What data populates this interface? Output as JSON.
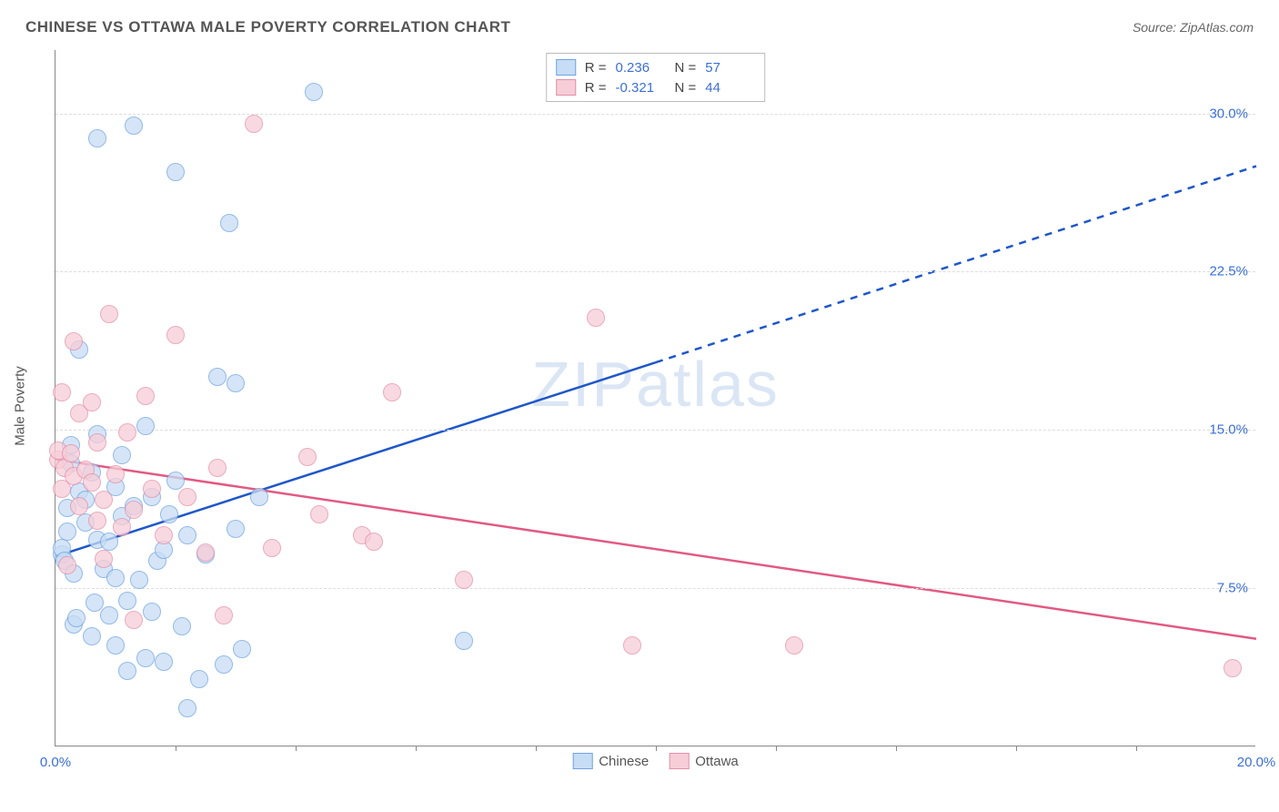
{
  "header": {
    "title": "CHINESE VS OTTAWA MALE POVERTY CORRELATION CHART",
    "source_prefix": "Source: ",
    "source_name": "ZipAtlas.com"
  },
  "watermark": {
    "a": "ZIP",
    "b": "atlas"
  },
  "axes": {
    "ylabel": "Male Poverty",
    "xlim": [
      0,
      20
    ],
    "ylim": [
      0,
      33
    ],
    "x_ticks_labeled": [
      {
        "v": 0,
        "label": "0.0%"
      },
      {
        "v": 20,
        "label": "20.0%"
      }
    ],
    "x_tick_marks": [
      2,
      4,
      6,
      8,
      10,
      12,
      14,
      16,
      18
    ],
    "y_ticks": [
      {
        "v": 7.5,
        "label": "7.5%"
      },
      {
        "v": 15.0,
        "label": "15.0%"
      },
      {
        "v": 22.5,
        "label": "22.5%"
      },
      {
        "v": 30.0,
        "label": "30.0%"
      }
    ],
    "grid_color": "#dddddd"
  },
  "legend_top": [
    {
      "r": "0.236",
      "n": "57",
      "fill": "#c7ddf5",
      "stroke": "#6fa3e0"
    },
    {
      "r": "-0.321",
      "n": "44",
      "fill": "#f7cdd8",
      "stroke": "#e290a8"
    }
  ],
  "legend_bottom": [
    {
      "label": "Chinese",
      "fill": "#c7ddf5",
      "stroke": "#6fa3e0"
    },
    {
      "label": "Ottawa",
      "fill": "#f7cdd8",
      "stroke": "#e290a8"
    }
  ],
  "series": {
    "chinese": {
      "fill": "#c7ddf5",
      "stroke": "#6fa3e0",
      "opacity": 0.75,
      "r": 10,
      "trend": {
        "x1": 0,
        "y1": 9.0,
        "x2": 10,
        "y2": 18.2,
        "x2_ext": 20,
        "y2_ext": 27.5,
        "color": "#1f57c8"
      },
      "points": [
        [
          0.1,
          9.1
        ],
        [
          0.1,
          9.4
        ],
        [
          0.15,
          8.8
        ],
        [
          0.2,
          10.2
        ],
        [
          0.2,
          11.3
        ],
        [
          0.25,
          14.3
        ],
        [
          0.25,
          13.4
        ],
        [
          0.3,
          8.2
        ],
        [
          0.3,
          5.8
        ],
        [
          0.35,
          6.1
        ],
        [
          0.4,
          12.1
        ],
        [
          0.4,
          18.8
        ],
        [
          0.5,
          10.6
        ],
        [
          0.5,
          11.7
        ],
        [
          0.6,
          13.0
        ],
        [
          0.6,
          5.2
        ],
        [
          0.65,
          6.8
        ],
        [
          0.7,
          14.8
        ],
        [
          0.7,
          9.8
        ],
        [
          0.7,
          28.8
        ],
        [
          0.8,
          8.4
        ],
        [
          0.9,
          6.2
        ],
        [
          0.9,
          9.7
        ],
        [
          1.0,
          12.3
        ],
        [
          1.0,
          4.8
        ],
        [
          1.0,
          8.0
        ],
        [
          1.1,
          13.8
        ],
        [
          1.1,
          10.9
        ],
        [
          1.2,
          6.9
        ],
        [
          1.2,
          3.6
        ],
        [
          1.3,
          29.4
        ],
        [
          1.3,
          11.4
        ],
        [
          1.4,
          7.9
        ],
        [
          1.5,
          15.2
        ],
        [
          1.5,
          4.2
        ],
        [
          1.6,
          11.8
        ],
        [
          1.6,
          6.4
        ],
        [
          1.7,
          8.8
        ],
        [
          1.8,
          9.3
        ],
        [
          1.8,
          4.0
        ],
        [
          1.9,
          11.0
        ],
        [
          2.0,
          12.6
        ],
        [
          2.0,
          27.2
        ],
        [
          2.1,
          5.7
        ],
        [
          2.2,
          10.0
        ],
        [
          2.2,
          1.8
        ],
        [
          2.4,
          3.2
        ],
        [
          2.5,
          9.1
        ],
        [
          2.7,
          17.5
        ],
        [
          2.8,
          3.9
        ],
        [
          2.9,
          24.8
        ],
        [
          3.0,
          10.3
        ],
        [
          3.0,
          17.2
        ],
        [
          3.1,
          4.6
        ],
        [
          3.4,
          11.8
        ],
        [
          4.3,
          31.0
        ],
        [
          6.8,
          5.0
        ]
      ]
    },
    "ottawa": {
      "fill": "#f7cdd8",
      "stroke": "#e290a8",
      "opacity": 0.75,
      "r": 10,
      "trend": {
        "x1": 0,
        "y1": 13.6,
        "x2": 20,
        "y2": 5.1,
        "color": "#e15a83"
      },
      "points": [
        [
          0.05,
          13.6
        ],
        [
          0.05,
          14.0
        ],
        [
          0.1,
          16.8
        ],
        [
          0.1,
          12.2
        ],
        [
          0.15,
          13.2
        ],
        [
          0.2,
          8.6
        ],
        [
          0.25,
          13.9
        ],
        [
          0.3,
          19.2
        ],
        [
          0.3,
          12.8
        ],
        [
          0.4,
          15.8
        ],
        [
          0.4,
          11.4
        ],
        [
          0.5,
          13.1
        ],
        [
          0.6,
          16.3
        ],
        [
          0.6,
          12.5
        ],
        [
          0.7,
          10.7
        ],
        [
          0.7,
          14.4
        ],
        [
          0.8,
          11.7
        ],
        [
          0.8,
          8.9
        ],
        [
          0.9,
          20.5
        ],
        [
          1.0,
          12.9
        ],
        [
          1.1,
          10.4
        ],
        [
          1.2,
          14.9
        ],
        [
          1.3,
          11.2
        ],
        [
          1.3,
          6.0
        ],
        [
          1.5,
          16.6
        ],
        [
          1.6,
          12.2
        ],
        [
          1.8,
          10.0
        ],
        [
          2.0,
          19.5
        ],
        [
          2.2,
          11.8
        ],
        [
          2.5,
          9.2
        ],
        [
          2.7,
          13.2
        ],
        [
          2.8,
          6.2
        ],
        [
          3.3,
          29.5
        ],
        [
          3.6,
          9.4
        ],
        [
          4.2,
          13.7
        ],
        [
          4.4,
          11.0
        ],
        [
          5.1,
          10.0
        ],
        [
          5.3,
          9.7
        ],
        [
          5.6,
          16.8
        ],
        [
          6.8,
          7.9
        ],
        [
          9.0,
          20.3
        ],
        [
          9.6,
          4.8
        ],
        [
          12.3,
          4.8
        ],
        [
          19.6,
          3.7
        ]
      ]
    }
  },
  "colors": {
    "title": "#555555",
    "axis_text": "#3b6fd6",
    "watermark": "#dbe6f5",
    "background": "#ffffff"
  }
}
